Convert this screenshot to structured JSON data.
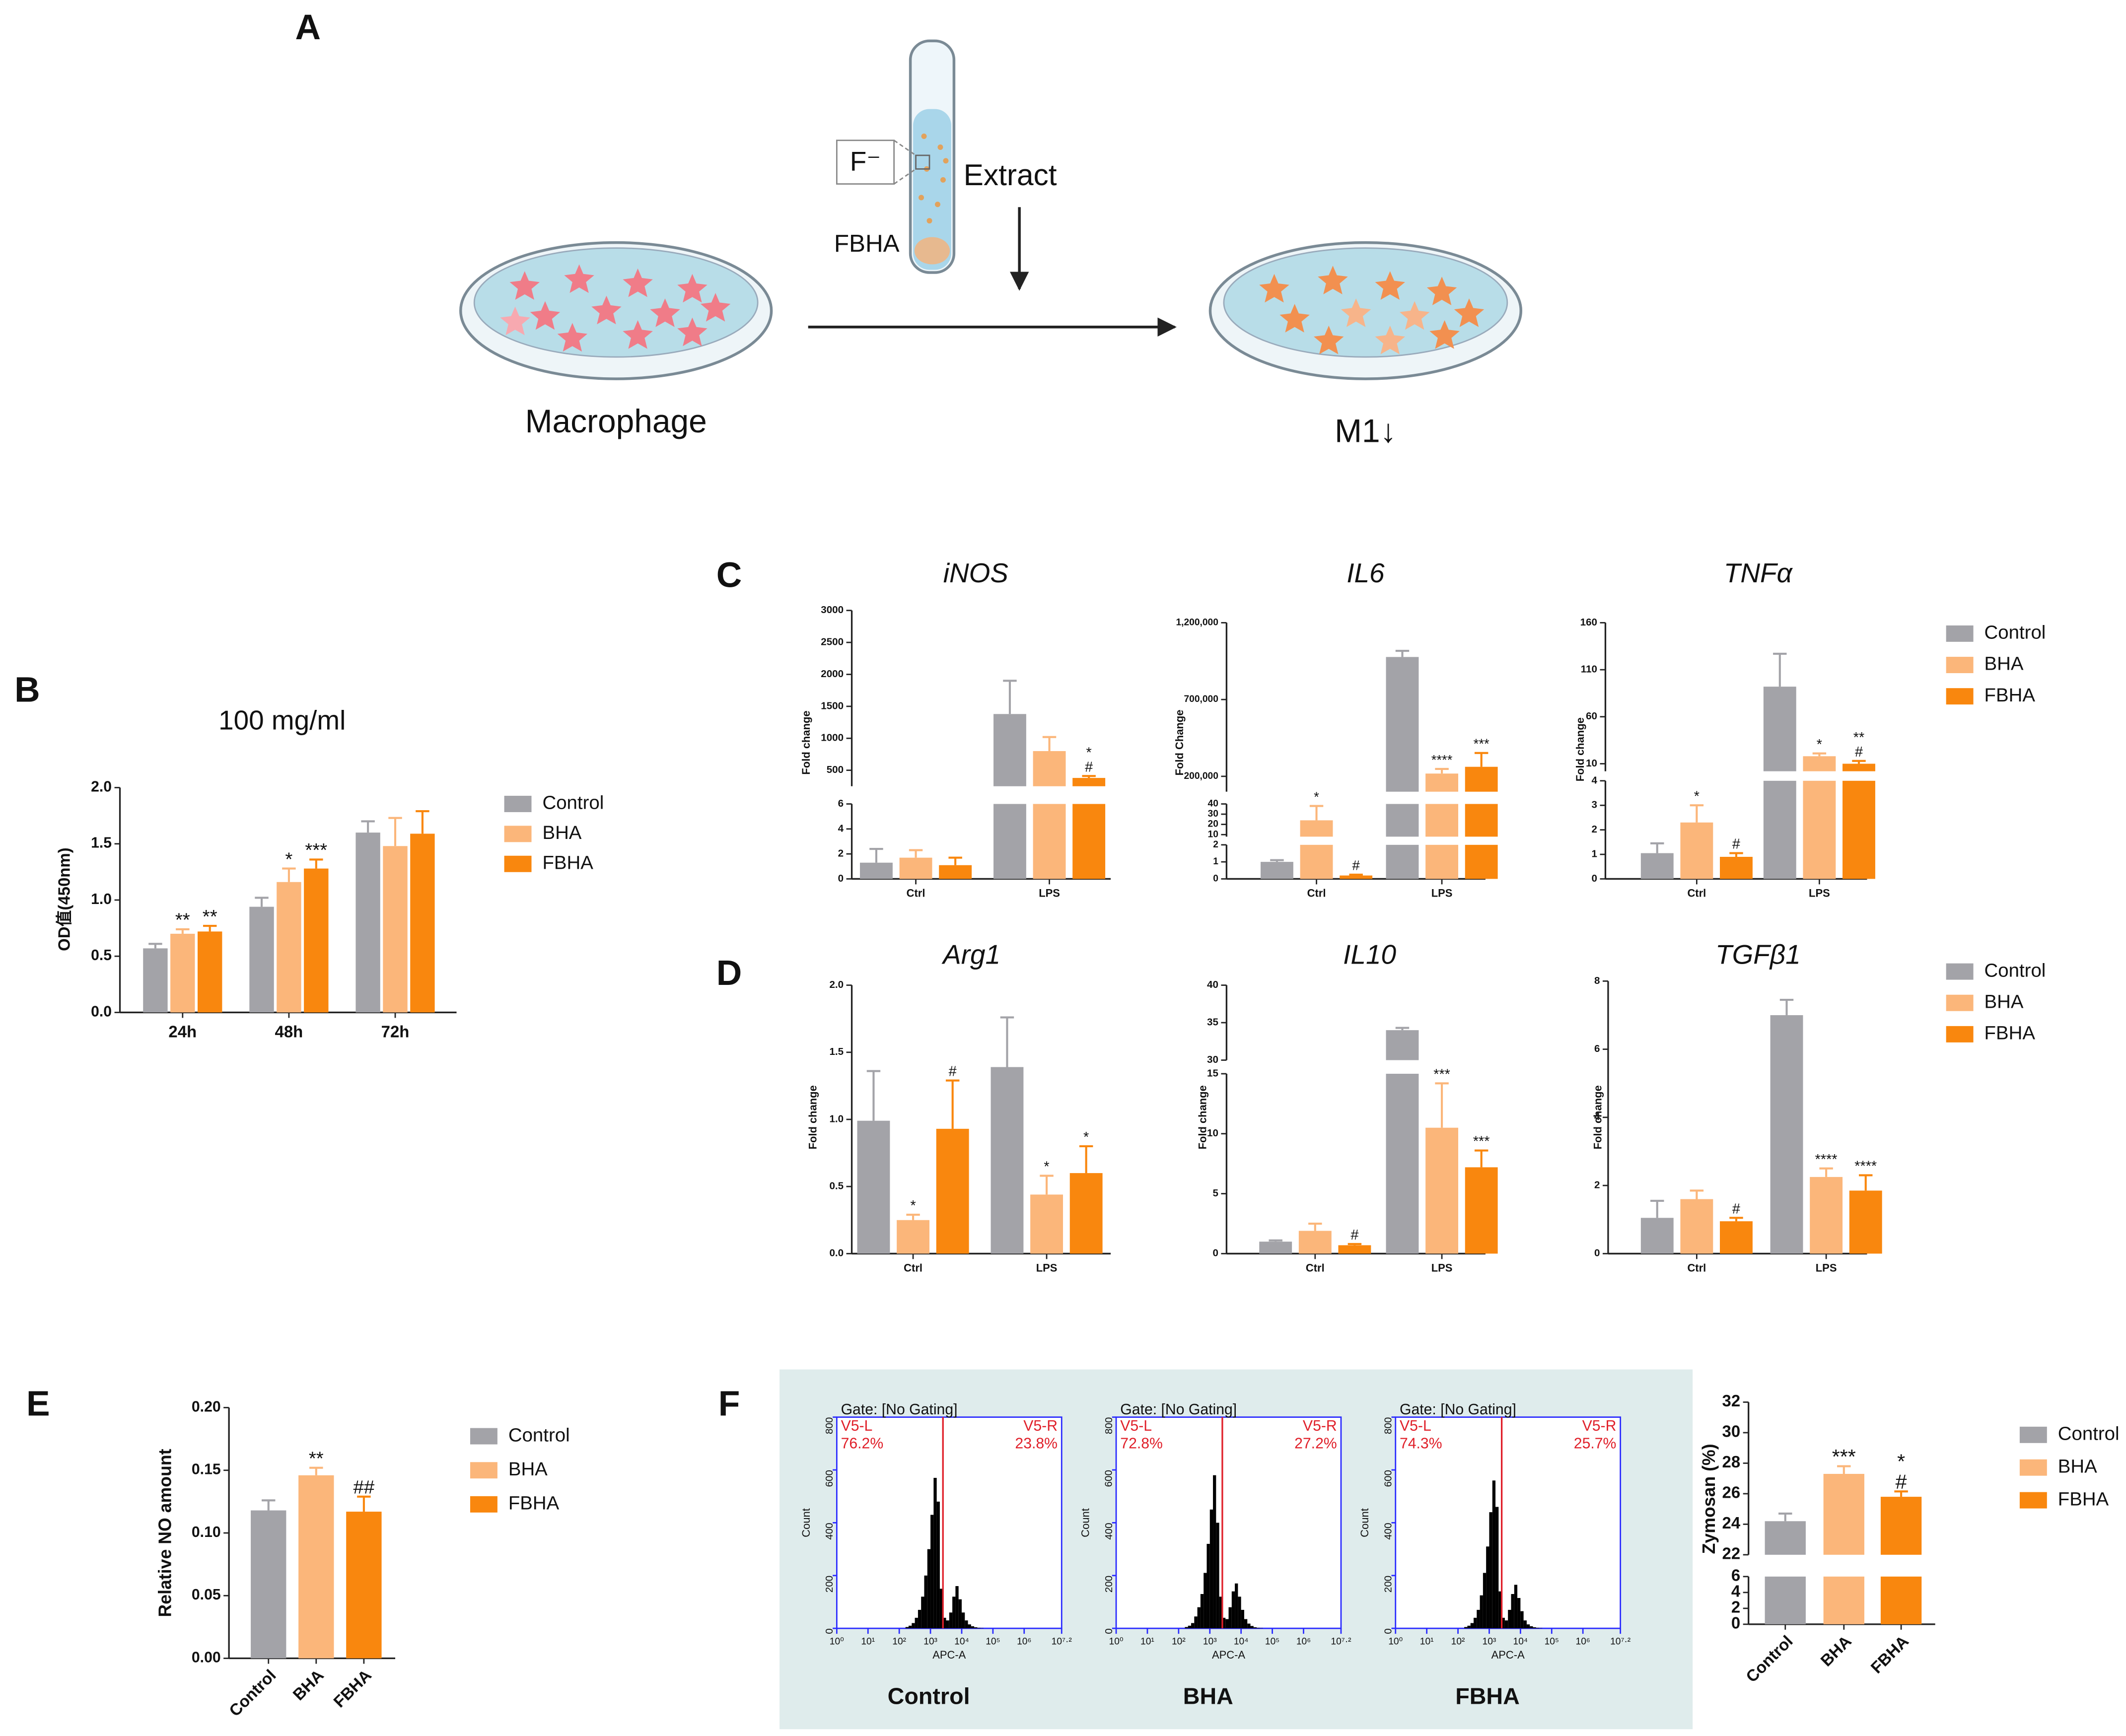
{
  "panel_labels": [
    "A",
    "B",
    "C",
    "D",
    "E",
    "F"
  ],
  "diagram": {
    "ion": "F⁻",
    "extract": "Extract",
    "material": "FBHA",
    "start": "Macrophage",
    "end": "M1↓"
  },
  "chart_data": [
    {
      "type": "bar",
      "title": "100 mg/ml",
      "ylabel": "OD值(450nm)",
      "legend": true,
      "categories": [
        "24h",
        "48h",
        "72h"
      ],
      "ylim": [
        0,
        2
      ],
      "yticks": [
        {
          "value": 0,
          "label": "0.0"
        },
        {
          "value": 0.5,
          "label": "0.5"
        },
        {
          "value": 1,
          "label": "1.0"
        },
        {
          "value": 1.5,
          "label": "1.5"
        },
        {
          "value": 2,
          "label": "2.0"
        }
      ],
      "series": [
        {
          "name": "Control",
          "color": "#a3a3a8",
          "values": [
            0.57,
            0.94,
            1.6
          ],
          "errors": [
            0.04,
            0.08,
            0.1
          ],
          "annotations": [
            null,
            null,
            null
          ]
        },
        {
          "name": "BHA",
          "color": "#fbb67a",
          "values": [
            0.7,
            1.16,
            1.48
          ],
          "errors": [
            0.04,
            0.12,
            0.25
          ],
          "annotations": [
            [
              "**"
            ],
            [
              "*"
            ],
            null
          ]
        },
        {
          "name": "FBHA",
          "color": "#f9870e",
          "values": [
            0.72,
            1.28,
            1.59
          ],
          "errors": [
            0.05,
            0.08,
            0.2
          ],
          "annotations": [
            [
              "**"
            ],
            [
              "***"
            ],
            null
          ]
        }
      ]
    },
    {
      "type": "bar",
      "title": "iNOS",
      "ylabel": "Fold change",
      "categories": [
        "Ctrl",
        "LPS"
      ],
      "segments": [
        {
          "ylim": [
            0,
            6
          ],
          "yticks": [
            0,
            2,
            4,
            6
          ]
        },
        {
          "ylim": [
            250,
            3000
          ],
          "yticks": [
            500,
            1000,
            1500,
            2000,
            2500,
            3000
          ]
        }
      ],
      "series": [
        {
          "name": "Control",
          "color": "#a3a3a8",
          "values": [
            1.3,
            1380
          ],
          "errors": [
            1.1,
            520
          ],
          "annotations": [
            null,
            null
          ]
        },
        {
          "name": "BHA",
          "color": "#fbb67a",
          "values": [
            1.7,
            800
          ],
          "errors": [
            0.6,
            220
          ],
          "annotations": [
            null,
            null
          ]
        },
        {
          "name": "FBHA",
          "color": "#f9870e",
          "values": [
            1.1,
            380
          ],
          "errors": [
            0.6,
            30
          ],
          "annotations": [
            null,
            [
              "*",
              "#"
            ]
          ]
        }
      ]
    },
    {
      "type": "bar",
      "title": "IL6",
      "ylabel": "Fold Change",
      "categories": [
        "Ctrl",
        "LPS"
      ],
      "segments": [
        {
          "ylim": [
            0,
            2
          ],
          "yticks": [
            0,
            1,
            2
          ]
        },
        {
          "ylim": [
            8,
            40
          ],
          "yticks": [
            10,
            20,
            30,
            40
          ]
        },
        {
          "ylim": [
            100000,
            1200000
          ],
          "yticks": [
            {
              "value": 200000,
              "label": "200,000"
            },
            {
              "value": 700000,
              "label": "700,000"
            },
            {
              "value": 1200000,
              "label": "1,200,000"
            }
          ]
        }
      ],
      "series": [
        {
          "name": "Control",
          "color": "#a3a3a8",
          "values": [
            1,
            977000
          ],
          "errors": [
            0.1,
            40000
          ],
          "annotations": [
            null,
            null
          ]
        },
        {
          "name": "BHA",
          "color": "#fbb67a",
          "values": [
            24,
            218000
          ],
          "errors": [
            14,
            30000
          ],
          "annotations": [
            [
              "*"
            ],
            [
              "****"
            ]
          ]
        },
        {
          "name": "FBHA",
          "color": "#f9870e",
          "values": [
            0.2,
            262000
          ],
          "errors": [
            0.05,
            90000
          ],
          "annotations": [
            [
              "#"
            ],
            [
              "***"
            ]
          ]
        }
      ]
    },
    {
      "type": "bar",
      "title": "TNFα",
      "ylabel": "Fold change",
      "categories": [
        "Ctrl",
        "LPS"
      ],
      "legend": true,
      "segments": [
        {
          "ylim": [
            0,
            4
          ],
          "yticks": [
            0,
            1,
            2,
            3,
            4
          ]
        },
        {
          "ylim": [
            2,
            160
          ],
          "yticks": [
            10,
            60,
            110,
            160
          ]
        }
      ],
      "series": [
        {
          "name": "Control",
          "color": "#a3a3a8",
          "values": [
            1.05,
            92
          ],
          "errors": [
            0.4,
            35
          ],
          "annotations": [
            null,
            null
          ]
        },
        {
          "name": "BHA",
          "color": "#fbb67a",
          "values": [
            2.3,
            18
          ],
          "errors": [
            0.7,
            3
          ],
          "annotations": [
            [
              "*"
            ],
            [
              "*"
            ]
          ]
        },
        {
          "name": "FBHA",
          "color": "#f9870e",
          "values": [
            0.9,
            10
          ],
          "errors": [
            0.15,
            3
          ],
          "annotations": [
            [
              "#"
            ],
            [
              "**",
              "#"
            ]
          ]
        }
      ]
    },
    {
      "type": "bar",
      "title": "Arg1",
      "ylabel": "Fold change",
      "categories": [
        "Ctrl",
        "LPS"
      ],
      "ylim": [
        0,
        2
      ],
      "yticks": [
        {
          "value": 0,
          "label": "0.0"
        },
        {
          "value": 0.5,
          "label": "0.5"
        },
        {
          "value": 1,
          "label": "1.0"
        },
        {
          "value": 1.5,
          "label": "1.5"
        },
        {
          "value": 2,
          "label": "2.0"
        }
      ],
      "series": [
        {
          "name": "Control",
          "color": "#a3a3a8",
          "values": [
            0.99,
            1.39
          ],
          "errors": [
            0.37,
            0.37
          ],
          "annotations": [
            null,
            null
          ]
        },
        {
          "name": "BHA",
          "color": "#fbb67a",
          "values": [
            0.25,
            0.44
          ],
          "errors": [
            0.04,
            0.14
          ],
          "annotations": [
            [
              "*"
            ],
            [
              "*"
            ]
          ]
        },
        {
          "name": "FBHA",
          "color": "#f9870e",
          "values": [
            0.93,
            0.6
          ],
          "errors": [
            0.36,
            0.2
          ],
          "annotations": [
            [
              "#"
            ],
            [
              "*"
            ]
          ]
        }
      ]
    },
    {
      "type": "bar",
      "title": "IL10",
      "ylabel": "Fold change",
      "categories": [
        "Ctrl",
        "LPS"
      ],
      "segments": [
        {
          "ylim": [
            0,
            15
          ],
          "yticks": [
            0,
            5,
            10,
            15
          ]
        },
        {
          "ylim": [
            30,
            40
          ],
          "yticks": [
            30,
            35,
            40
          ]
        }
      ],
      "series": [
        {
          "name": "Control",
          "color": "#a3a3a8",
          "values": [
            1,
            34
          ],
          "errors": [
            0.1,
            0.3
          ],
          "annotations": [
            null,
            null
          ]
        },
        {
          "name": "BHA",
          "color": "#fbb67a",
          "values": [
            1.9,
            10.5
          ],
          "errors": [
            0.6,
            3.7
          ],
          "annotations": [
            null,
            [
              "***"
            ]
          ]
        },
        {
          "name": "FBHA",
          "color": "#f9870e",
          "values": [
            0.7,
            7.2
          ],
          "errors": [
            0.1,
            1.4
          ],
          "annotations": [
            [
              "#"
            ],
            [
              "***"
            ]
          ]
        }
      ]
    },
    {
      "type": "bar",
      "title": "TGFβ1",
      "ylabel": "Fold change",
      "categories": [
        "Ctrl",
        "LPS"
      ],
      "legend": true,
      "ylim": [
        0,
        8
      ],
      "yticks": [
        0,
        2,
        4,
        6,
        8
      ],
      "series": [
        {
          "name": "Control",
          "color": "#a3a3a8",
          "values": [
            1.05,
            7
          ],
          "errors": [
            0.5,
            0.45
          ],
          "annotations": [
            null,
            null
          ]
        },
        {
          "name": "BHA",
          "color": "#fbb67a",
          "values": [
            1.6,
            2.25
          ],
          "errors": [
            0.25,
            0.25
          ],
          "annotations": [
            null,
            [
              "****"
            ]
          ]
        },
        {
          "name": "FBHA",
          "color": "#f9870e",
          "values": [
            0.95,
            1.85
          ],
          "errors": [
            0.1,
            0.45
          ],
          "annotations": [
            [
              "#"
            ],
            [
              "****"
            ]
          ]
        }
      ]
    },
    {
      "type": "bar",
      "ylabel": "Relative NO amount",
      "legend": true,
      "categories": [
        "Control",
        "BHA",
        "FBHA"
      ],
      "colors": [
        "#a3a3a8",
        "#fbb67a",
        "#f9870e"
      ],
      "values": [
        0.118,
        0.146,
        0.117
      ],
      "errors": [
        0.008,
        0.006,
        0.012
      ],
      "annotations": [
        null,
        [
          "**"
        ],
        [
          "##"
        ]
      ],
      "ylim": [
        0,
        0.2
      ],
      "yticks": [
        {
          "value": 0,
          "label": "0.00"
        },
        {
          "value": 0.05,
          "label": "0.05"
        },
        {
          "value": 0.1,
          "label": "0.10"
        },
        {
          "value": 0.15,
          "label": "0.15"
        },
        {
          "value": 0.2,
          "label": "0.20"
        }
      ]
    },
    {
      "type": "bar",
      "ylabel": "Zymosan (%)",
      "legend": true,
      "categories": [
        "Control",
        "BHA",
        "FBHA"
      ],
      "colors": [
        "#a3a3a8",
        "#fbb67a",
        "#f9870e"
      ],
      "values": [
        24.2,
        27.3,
        25.8
      ],
      "errors": [
        0.5,
        0.5,
        0.35
      ],
      "annotations": [
        null,
        [
          "***"
        ],
        [
          "*",
          "#"
        ]
      ],
      "segments": [
        {
          "ylim": [
            0,
            6
          ],
          "yticks": [
            0,
            2,
            4,
            6
          ]
        },
        {
          "ylim": [
            22,
            32
          ],
          "yticks": [
            22,
            24,
            26,
            28,
            30,
            32
          ]
        }
      ]
    },
    {
      "type": "histogram",
      "title": "Control",
      "gate_label": "Gate: [No Gating]",
      "left_gate": "V5-L",
      "left_pct": "76.2%",
      "right_gate": "V5-R",
      "right_pct": "23.8%",
      "xlabel": "APC-A",
      "ylabel": "Count",
      "gate": 3.4,
      "xlim": [
        0,
        7.2
      ],
      "ylim": [
        0,
        800
      ],
      "yticks": [
        0,
        200,
        400,
        600,
        800
      ],
      "xticks": [
        {
          "value": 0,
          "label": "10⁰"
        },
        {
          "value": 1,
          "label": "10¹"
        },
        {
          "value": 2,
          "label": "10²"
        },
        {
          "value": 3,
          "label": "10³"
        },
        {
          "value": 4,
          "label": "10⁴"
        },
        {
          "value": 5,
          "label": "10⁵"
        },
        {
          "value": 6,
          "label": "10⁶"
        },
        {
          "value": 7.2,
          "label": "10⁷·²"
        }
      ],
      "bins": [
        2.2,
        2.3,
        2.4,
        2.5,
        2.6,
        2.7,
        2.8,
        2.9,
        3.0,
        3.1,
        3.2,
        3.3,
        3.4,
        3.5,
        3.6,
        3.7,
        3.8,
        3.9,
        4.0,
        4.1,
        4.2,
        4.3,
        4.4,
        4.5,
        4.6,
        4.7
      ],
      "counts": [
        5,
        10,
        20,
        40,
        70,
        120,
        200,
        300,
        430,
        570,
        480,
        150,
        40,
        30,
        60,
        120,
        160,
        110,
        60,
        30,
        15,
        8,
        4,
        2,
        1
      ]
    },
    {
      "type": "histogram",
      "title": "BHA",
      "gate_label": "Gate: [No Gating]",
      "left_gate": "V5-L",
      "left_pct": "72.8%",
      "right_gate": "V5-R",
      "right_pct": "27.2%",
      "xlabel": "APC-A",
      "ylabel": "Count",
      "gate": 3.4,
      "xlim": [
        0,
        7.2
      ],
      "ylim": [
        0,
        800
      ],
      "yticks": [
        0,
        200,
        400,
        600,
        800
      ],
      "xticks": [
        {
          "value": 0,
          "label": "10⁰"
        },
        {
          "value": 1,
          "label": "10¹"
        },
        {
          "value": 2,
          "label": "10²"
        },
        {
          "value": 3,
          "label": "10³"
        },
        {
          "value": 4,
          "label": "10⁴"
        },
        {
          "value": 5,
          "label": "10⁵"
        },
        {
          "value": 6,
          "label": "10⁶"
        },
        {
          "value": 7.2,
          "label": "10⁷·²"
        }
      ],
      "bins": [
        2.2,
        2.3,
        2.4,
        2.5,
        2.6,
        2.7,
        2.8,
        2.9,
        3.0,
        3.1,
        3.2,
        3.3,
        3.4,
        3.5,
        3.6,
        3.7,
        3.8,
        3.9,
        4.0,
        4.1,
        4.2,
        4.3,
        4.4,
        4.5,
        4.6,
        4.7
      ],
      "counts": [
        5,
        10,
        20,
        45,
        80,
        130,
        210,
        320,
        450,
        580,
        400,
        120,
        40,
        35,
        80,
        140,
        170,
        120,
        70,
        35,
        18,
        9,
        4,
        2,
        1
      ]
    },
    {
      "type": "histogram",
      "title": "FBHA",
      "gate_label": "Gate: [No Gating]",
      "left_gate": "V5-L",
      "left_pct": "74.3%",
      "right_gate": "V5-R",
      "right_pct": "25.7%",
      "xlabel": "APC-A",
      "ylabel": "Count",
      "gate": 3.4,
      "xlim": [
        0,
        7.2
      ],
      "ylim": [
        0,
        800
      ],
      "yticks": [
        0,
        200,
        400,
        600,
        800
      ],
      "xticks": [
        {
          "value": 0,
          "label": "10⁰"
        },
        {
          "value": 1,
          "label": "10¹"
        },
        {
          "value": 2,
          "label": "10²"
        },
        {
          "value": 3,
          "label": "10³"
        },
        {
          "value": 4,
          "label": "10⁴"
        },
        {
          "value": 5,
          "label": "10⁵"
        },
        {
          "value": 6,
          "label": "10⁶"
        },
        {
          "value": 7.2,
          "label": "10⁷·²"
        }
      ],
      "bins": [
        2.2,
        2.3,
        2.4,
        2.5,
        2.6,
        2.7,
        2.8,
        2.9,
        3.0,
        3.1,
        3.2,
        3.3,
        3.4,
        3.5,
        3.6,
        3.7,
        3.8,
        3.9,
        4.0,
        4.1,
        4.2,
        4.3,
        4.4,
        4.5,
        4.6,
        4.7
      ],
      "counts": [
        5,
        10,
        20,
        40,
        70,
        125,
        210,
        310,
        440,
        560,
        460,
        140,
        40,
        30,
        70,
        130,
        165,
        115,
        65,
        30,
        15,
        8,
        4,
        2,
        1
      ]
    }
  ]
}
